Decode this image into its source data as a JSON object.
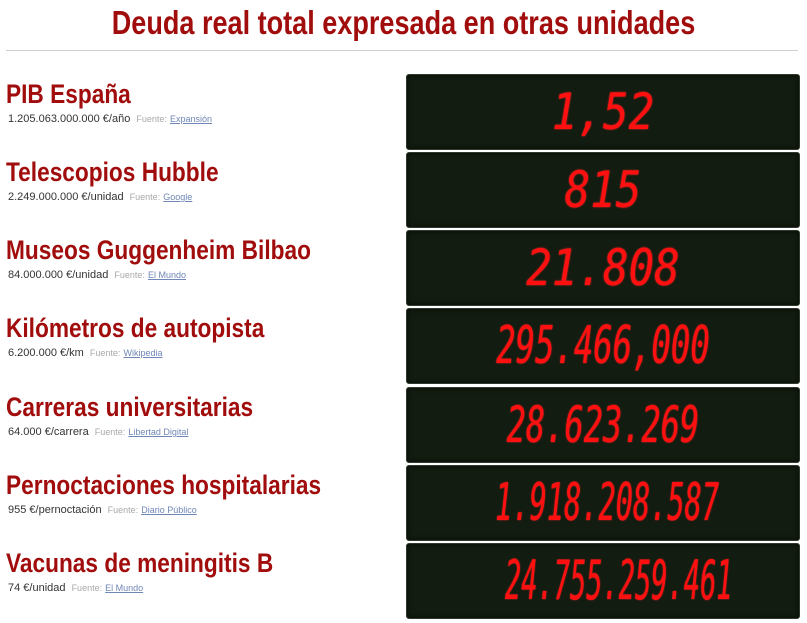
{
  "title": "Deuda real total expresada en otras unidades",
  "fuente_label": "Fuente:",
  "rows": [
    {
      "name": "PIB España",
      "price": "1.205.063.000.000 €/año",
      "source": "Expansión",
      "value": "1,52"
    },
    {
      "name": "Telescopios Hubble",
      "price": "2.249.000.000 €/unidad",
      "source": "Google",
      "value": "815"
    },
    {
      "name": "Museos Guggenheim Bilbao",
      "price": "84.000.000 €/unidad",
      "source": "El Mundo",
      "value": "21.808"
    },
    {
      "name": "Kilómetros de autopista",
      "price": "6.200.000 €/km",
      "source": "Wikipedia",
      "value": "295.466,000"
    },
    {
      "name": "Carreras universitarias",
      "price": "64.000 €/carrera",
      "source": "Libertad Digital",
      "value": "28.623.269"
    },
    {
      "name": "Pernoctaciones hospitalarias",
      "price": "955 €/pernoctación",
      "source": "Diario Público",
      "value": "1.918.208.587"
    },
    {
      "name": "Vacunas de meningitis B",
      "price": "74 €/unidad",
      "source": "El Mundo",
      "value": "24.755.259.461"
    }
  ],
  "colors": {
    "title": "#a10d0d",
    "display_bg": "#121c10",
    "digits": "#ff1010",
    "source_link": "#6f86b6"
  }
}
